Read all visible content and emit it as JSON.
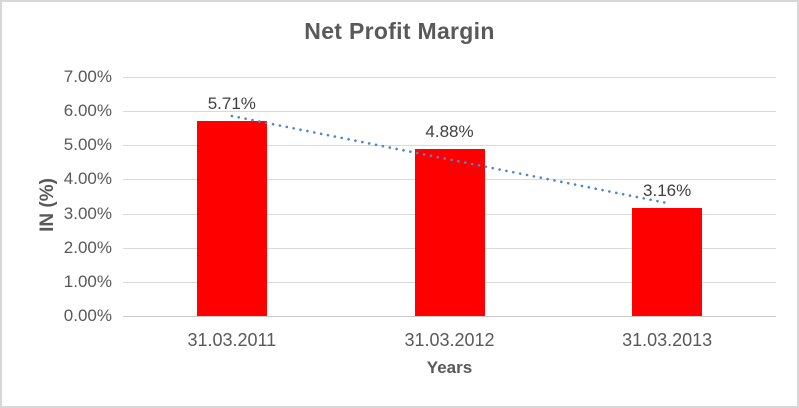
{
  "chart_data": {
    "type": "bar",
    "title": "Net Profit Margin",
    "xlabel": "Years",
    "ylabel": "IN (%)",
    "categories": [
      "31.03.2011",
      "31.03.2012",
      "31.03.2013"
    ],
    "values": [
      5.71,
      4.88,
      3.16
    ],
    "data_labels": [
      "5.71%",
      "4.88%",
      "3.16%"
    ],
    "ylim": [
      0,
      7
    ],
    "yticks": [
      0,
      1,
      2,
      3,
      4,
      5,
      6,
      7
    ],
    "ytick_labels": [
      "0.00%",
      "1.00%",
      "2.00%",
      "3.00%",
      "4.00%",
      "5.00%",
      "6.00%",
      "7.00%"
    ],
    "grid": true,
    "legend": "none",
    "bar_color": "#FF0000",
    "trendline": {
      "type": "linear",
      "style": "dotted",
      "color": "#4E87C8"
    },
    "colors": {
      "text": "#595959",
      "data_label": "#404040",
      "gridline": "#D9D9D9",
      "axis_line": "#C9C9C9",
      "figure_border": "#D7D7D7",
      "background": "#FFFFFF"
    }
  }
}
